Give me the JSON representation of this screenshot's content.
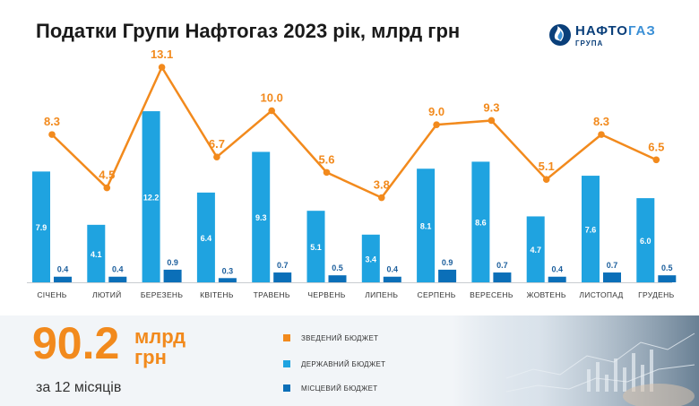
{
  "title": "Податки Групи Нафтогаз 2023 рік, млрд грн",
  "logo": {
    "name_part_a": "НАФТО",
    "name_part_b": "ГАЗ",
    "subtitle": "ГРУПА"
  },
  "colors": {
    "consolidated": "#f28a1d",
    "state": "#1fa3e0",
    "local": "#0b6fb8",
    "axis": "#c8ccd0"
  },
  "chart_data": {
    "type": "bar",
    "categories": [
      "СІЧЕНЬ",
      "ЛЮТИЙ",
      "БЕРЕЗЕНЬ",
      "КВІТЕНЬ",
      "ТРАВЕНЬ",
      "ЧЕРВЕНЬ",
      "ЛИПЕНЬ",
      "СЕРПЕНЬ",
      "ВЕРЕСЕНЬ",
      "ЖОВТЕНЬ",
      "ЛИСТОПАД",
      "ГРУДЕНЬ"
    ],
    "series": [
      {
        "name": "ДЕРЖАВНИЙ БЮДЖЕТ",
        "kind": "bar",
        "values": [
          7.9,
          4.1,
          12.2,
          6.4,
          9.3,
          5.1,
          3.4,
          8.1,
          8.6,
          4.7,
          7.6,
          6.0
        ]
      },
      {
        "name": "МІСЦЕВИЙ БЮДЖЕТ",
        "kind": "bar",
        "values": [
          0.4,
          0.4,
          0.9,
          0.3,
          0.7,
          0.5,
          0.4,
          0.9,
          0.7,
          0.4,
          0.7,
          0.5
        ]
      },
      {
        "name": "ЗВЕДЕНИЙ БЮДЖЕТ",
        "kind": "line",
        "values": [
          8.3,
          4.5,
          13.1,
          6.7,
          10.0,
          5.6,
          3.8,
          9.0,
          9.3,
          5.1,
          8.3,
          6.5
        ]
      }
    ],
    "value_labels": {
      "state": [
        "7.9",
        "4.1",
        "12.2",
        "6.4",
        "9.3",
        "5.1",
        "3.4",
        "8.1",
        "8.6",
        "4.7",
        "7.6",
        "6.0"
      ],
      "local": [
        "0.4",
        "0.4",
        "0.9",
        "0.3",
        "0.7",
        "0.5",
        "0.4",
        "0.9",
        "0.7",
        "0.4",
        "0.7",
        "0.5"
      ],
      "consolidated": [
        "8.3",
        "4.5",
        "13.1",
        "6.7",
        "10.0",
        "5.6",
        "3.8",
        "9.0",
        "9.3",
        "5.1",
        "8.3",
        "6.5"
      ]
    },
    "ylim": [
      0,
      13.1
    ],
    "grid": false,
    "legend": "bottom"
  },
  "summary": {
    "total": "90.2",
    "unit_line1": "млрд",
    "unit_line2": "грн",
    "period": "за 12 місяців"
  },
  "legend": [
    {
      "label": "ЗВЕДЕНИЙ БЮДЖЕТ",
      "color": "#f28a1d"
    },
    {
      "label": "ДЕРЖАВНИЙ БЮДЖЕТ",
      "color": "#1fa3e0"
    },
    {
      "label": "МІСЦЕВИЙ БЮДЖЕТ",
      "color": "#0b6fb8"
    }
  ]
}
